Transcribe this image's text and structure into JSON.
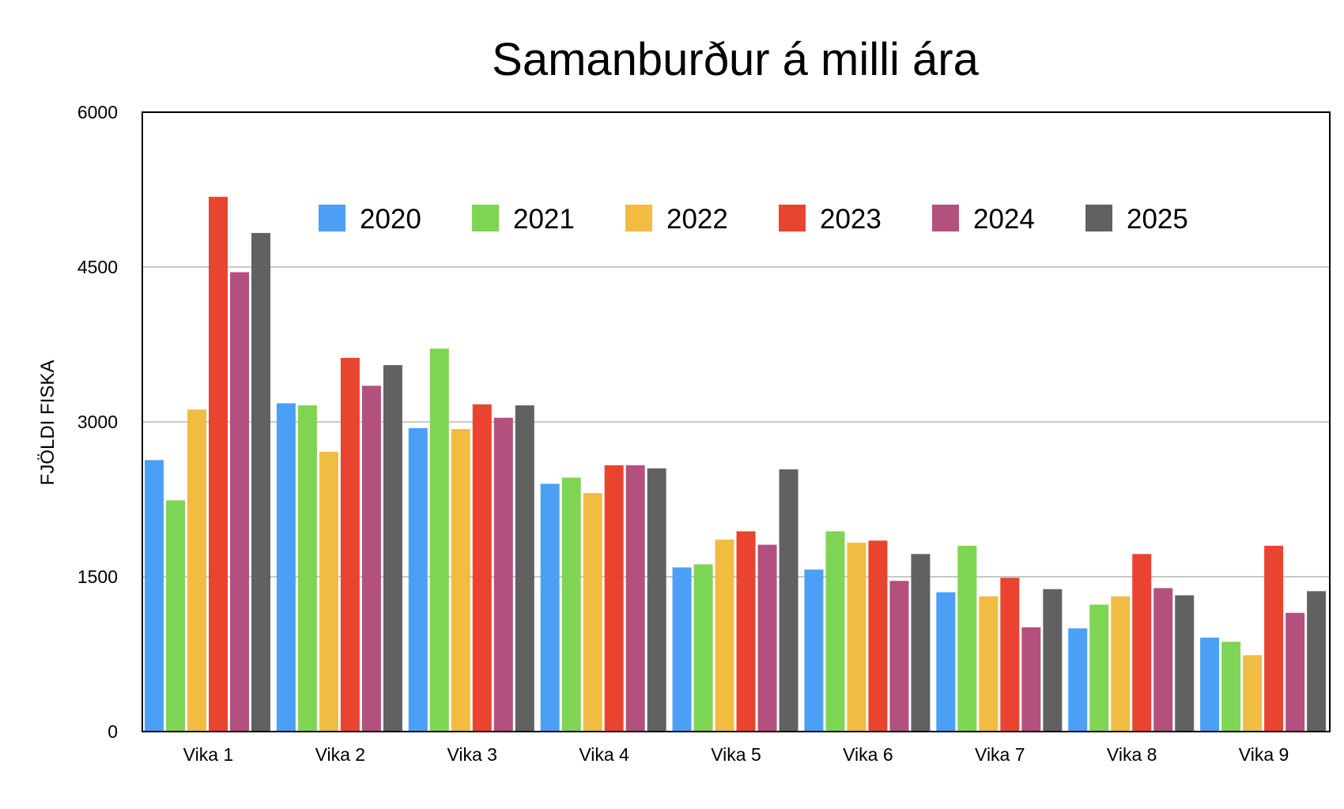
{
  "chart_data": {
    "type": "bar",
    "title": "Samanburður á milli ára",
    "xlabel": "",
    "ylabel": "FJÖLDI FISKA",
    "ylim": [
      0,
      6000
    ],
    "yticks": [
      0,
      1500,
      3000,
      4500,
      6000
    ],
    "yticklabels": [
      "0",
      "1500",
      "3000",
      "4500",
      "6000"
    ],
    "grid": true,
    "legend_position": "top",
    "categories": [
      "Vika 1",
      "Vika 2",
      "Vika 3",
      "Vika 4",
      "Vika 5",
      "Vika 6",
      "Vika 7",
      "Vika 8",
      "Vika 9"
    ],
    "series": [
      {
        "name": "2020",
        "color": "#4ba0f5",
        "values": [
          2630,
          3180,
          2940,
          2400,
          1590,
          1570,
          1350,
          1000,
          910
        ]
      },
      {
        "name": "2021",
        "color": "#7ed553",
        "values": [
          2240,
          3160,
          3710,
          2460,
          1620,
          1940,
          1800,
          1230,
          870
        ]
      },
      {
        "name": "2022",
        "color": "#f0bc41",
        "values": [
          3120,
          2710,
          2930,
          2310,
          1860,
          1830,
          1310,
          1310,
          740
        ]
      },
      {
        "name": "2023",
        "color": "#e84430",
        "values": [
          5180,
          3620,
          3170,
          2580,
          1940,
          1850,
          1490,
          1720,
          1800
        ]
      },
      {
        "name": "2024",
        "color": "#b4507e",
        "values": [
          4450,
          3350,
          3040,
          2580,
          1810,
          1460,
          1010,
          1390,
          1150
        ]
      },
      {
        "name": "2025",
        "color": "#616161",
        "values": [
          4830,
          3550,
          3160,
          2550,
          2540,
          1720,
          1380,
          1320,
          1360
        ]
      }
    ]
  }
}
